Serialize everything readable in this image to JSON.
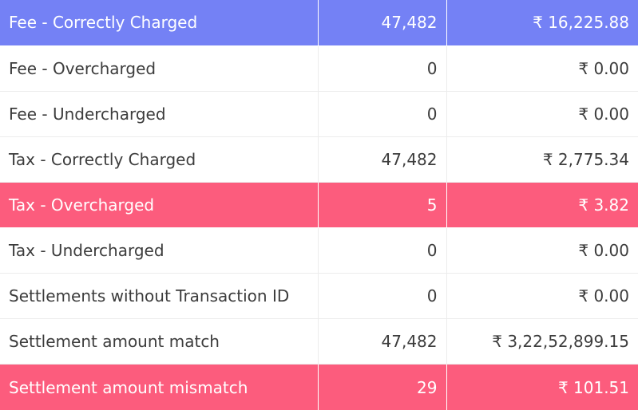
{
  "colors": {
    "blue_highlight": "#7481f5",
    "red_highlight": "#fc5c7d"
  },
  "rows": [
    {
      "label": "Fee - Correctly Charged",
      "count": "47,482",
      "amount": "₹ 16,225.88",
      "highlight": "blue"
    },
    {
      "label": "Fee - Overcharged",
      "count": "0",
      "amount": "₹ 0.00",
      "highlight": "none"
    },
    {
      "label": "Fee - Undercharged",
      "count": "0",
      "amount": "₹ 0.00",
      "highlight": "none"
    },
    {
      "label": "Tax - Correctly Charged",
      "count": "47,482",
      "amount": "₹ 2,775.34",
      "highlight": "none"
    },
    {
      "label": "Tax - Overcharged",
      "count": "5",
      "amount": "₹ 3.82",
      "highlight": "red"
    },
    {
      "label": "Tax - Undercharged",
      "count": "0",
      "amount": "₹ 0.00",
      "highlight": "none"
    },
    {
      "label": "Settlements without Transaction ID",
      "count": "0",
      "amount": "₹ 0.00",
      "highlight": "none"
    },
    {
      "label": "Settlement amount match",
      "count": "47,482",
      "amount": "₹ 3,22,52,899.15",
      "highlight": "none"
    },
    {
      "label": "Settlement amount mismatch",
      "count": "29",
      "amount": "₹ 101.51",
      "highlight": "red"
    }
  ]
}
